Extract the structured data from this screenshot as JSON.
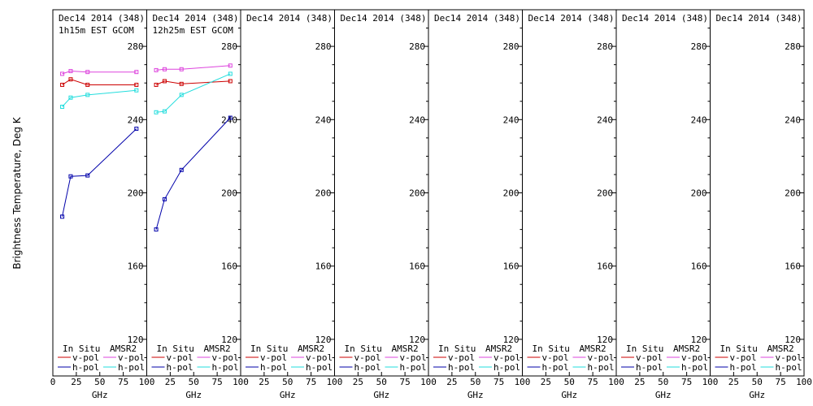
{
  "figure": {
    "ylabel": "Brightness Temperature, Deg K",
    "xlabel": "GHz",
    "colors": {
      "insitu_vpol": "#cc0000",
      "insitu_hpol": "#0000aa",
      "amsr2_vpol": "#dd44dd",
      "amsr2_hpol": "#22dddd"
    }
  },
  "chart_data": [
    {
      "type": "line",
      "title": "Dec14 2014 (348)",
      "subtitle": "1h15m EST GCOM",
      "xlim": [
        0,
        100
      ],
      "ylim": [
        100,
        300
      ],
      "xticks": [
        0,
        25,
        50,
        75,
        100
      ],
      "yticks": [
        120,
        160,
        200,
        240,
        280
      ],
      "legend": {
        "col1": "In Situ",
        "col2": "AMSR2",
        "vpol": "v-pol",
        "hpol": "h-pol"
      },
      "series": [
        {
          "key": "insitu_vpol",
          "x": [
            10,
            19,
            37,
            89
          ],
          "y": [
            259,
            262,
            259,
            259
          ]
        },
        {
          "key": "amsr2_vpol",
          "x": [
            10,
            19,
            37,
            89
          ],
          "y": [
            265,
            266.5,
            266,
            266
          ]
        },
        {
          "key": "amsr2_hpol",
          "x": [
            10,
            19,
            37,
            89
          ],
          "y": [
            247,
            252,
            253.5,
            256
          ]
        },
        {
          "key": "insitu_hpol",
          "x": [
            10,
            19,
            37,
            89
          ],
          "y": [
            187,
            209,
            209.5,
            235
          ]
        }
      ]
    },
    {
      "type": "line",
      "title": "Dec14 2014 (348)",
      "subtitle": "12h25m EST GCOM",
      "xlim": [
        0,
        100
      ],
      "ylim": [
        100,
        300
      ],
      "xticks": [
        0,
        25,
        50,
        75,
        100
      ],
      "yticks": [
        120,
        160,
        200,
        240,
        280
      ],
      "legend": {
        "col1": "In Situ",
        "col2": "AMSR2",
        "vpol": "v-pol",
        "hpol": "h-pol"
      },
      "series": [
        {
          "key": "insitu_vpol",
          "x": [
            10,
            19,
            37,
            89
          ],
          "y": [
            259,
            261,
            259.5,
            261
          ]
        },
        {
          "key": "amsr2_vpol",
          "x": [
            10,
            19,
            37,
            89
          ],
          "y": [
            267,
            267.5,
            267.5,
            269.5
          ]
        },
        {
          "key": "amsr2_hpol",
          "x": [
            10,
            19,
            37,
            89
          ],
          "y": [
            244,
            244.5,
            253.5,
            265
          ]
        },
        {
          "key": "insitu_hpol",
          "x": [
            10,
            19,
            37,
            89
          ],
          "y": [
            180,
            196.5,
            212.5,
            241
          ]
        }
      ]
    },
    {
      "type": "line",
      "title": "Dec14 2014 (348)",
      "subtitle": "",
      "xlim": [
        0,
        100
      ],
      "ylim": [
        100,
        300
      ],
      "xticks": [
        0,
        25,
        50,
        75,
        100
      ],
      "yticks": [
        120,
        160,
        200,
        240,
        280
      ],
      "legend": {
        "col1": "In Situ",
        "col2": "AMSR2",
        "vpol": "v-pol",
        "hpol": "h-pol"
      },
      "series": []
    },
    {
      "type": "line",
      "title": "Dec14 2014 (348)",
      "subtitle": "",
      "xlim": [
        0,
        100
      ],
      "ylim": [
        100,
        300
      ],
      "xticks": [
        0,
        25,
        50,
        75,
        100
      ],
      "yticks": [
        120,
        160,
        200,
        240,
        280
      ],
      "legend": {
        "col1": "In Situ",
        "col2": "AMSR2",
        "vpol": "v-pol",
        "hpol": "h-pol"
      },
      "series": []
    },
    {
      "type": "line",
      "title": "Dec14 2014 (348)",
      "subtitle": "",
      "xlim": [
        0,
        100
      ],
      "ylim": [
        100,
        300
      ],
      "xticks": [
        0,
        25,
        50,
        75,
        100
      ],
      "yticks": [
        120,
        160,
        200,
        240,
        280
      ],
      "legend": {
        "col1": "In Situ",
        "col2": "AMSR2",
        "vpol": "v-pol",
        "hpol": "h-pol"
      },
      "series": []
    },
    {
      "type": "line",
      "title": "Dec14 2014 (348)",
      "subtitle": "",
      "xlim": [
        0,
        100
      ],
      "ylim": [
        100,
        300
      ],
      "xticks": [
        0,
        25,
        50,
        75,
        100
      ],
      "yticks": [
        120,
        160,
        200,
        240,
        280
      ],
      "legend": {
        "col1": "In Situ",
        "col2": "AMSR2",
        "vpol": "v-pol",
        "hpol": "h-pol"
      },
      "series": []
    },
    {
      "type": "line",
      "title": "Dec14 2014 (348)",
      "subtitle": "",
      "xlim": [
        0,
        100
      ],
      "ylim": [
        100,
        300
      ],
      "xticks": [
        0,
        25,
        50,
        75,
        100
      ],
      "yticks": [
        120,
        160,
        200,
        240,
        280
      ],
      "legend": {
        "col1": "In Situ",
        "col2": "AMSR2",
        "vpol": "v-pol",
        "hpol": "h-pol"
      },
      "series": []
    },
    {
      "type": "line",
      "title": "Dec14 2014 (348)",
      "subtitle": "",
      "xlim": [
        0,
        100
      ],
      "ylim": [
        100,
        300
      ],
      "xticks": [
        0,
        25,
        50,
        75,
        100
      ],
      "yticks": [
        120,
        160,
        200,
        240,
        280
      ],
      "legend": {
        "col1": "In Situ",
        "col2": "AMSR2",
        "vpol": "v-pol",
        "hpol": "h-pol"
      },
      "series": []
    }
  ]
}
